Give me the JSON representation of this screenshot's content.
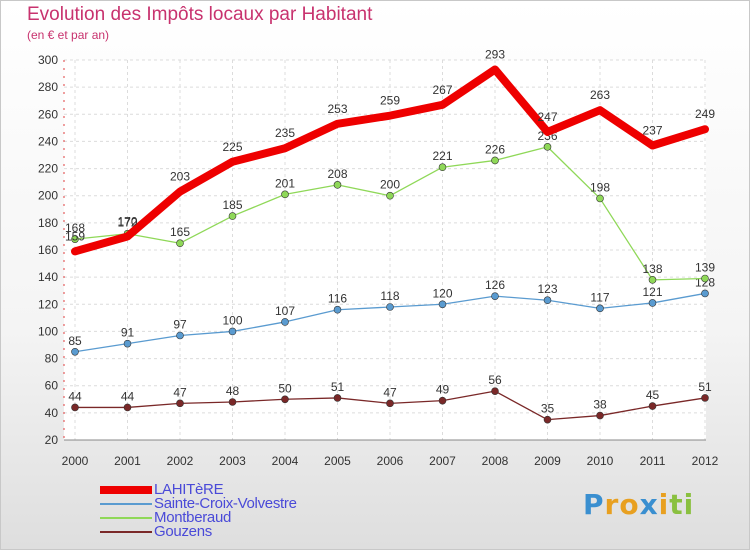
{
  "header": {
    "title": "Evolution des Impôts locaux par Habitant",
    "subtitle": "(en € et par an)"
  },
  "logo": {
    "letters": [
      "P",
      "r",
      "o",
      "x",
      "i",
      "t",
      "i"
    ],
    "colors": [
      "#3a8fd0",
      "#e8a020",
      "#e8a020",
      "#3a8fd0",
      "#e8a020",
      "#8ac040",
      "#8ac040"
    ]
  },
  "chart_data": {
    "type": "line",
    "title": "Evolution des Impôts locaux par Habitant",
    "subtitle": "(en € et par an)",
    "xlabel": "",
    "ylabel": "",
    "categories": [
      "2000",
      "2001",
      "2002",
      "2003",
      "2004",
      "2005",
      "2006",
      "2007",
      "2008",
      "2009",
      "2010",
      "2011",
      "2012"
    ],
    "ylim": [
      20,
      300
    ],
    "yticks": [
      20,
      40,
      60,
      80,
      100,
      120,
      140,
      160,
      180,
      200,
      220,
      240,
      260,
      280,
      300
    ],
    "grid": true,
    "legend_position": "bottom-left",
    "series": [
      {
        "name": "Gouzens",
        "color": "#7a2828",
        "values": [
          44,
          44,
          47,
          48,
          50,
          51,
          47,
          49,
          56,
          35,
          38,
          45,
          51
        ]
      },
      {
        "name": "Sainte-Croix-Volvestre",
        "color": "#5a9bd0",
        "values": [
          85,
          91,
          97,
          100,
          107,
          116,
          118,
          120,
          126,
          123,
          117,
          121,
          128
        ]
      },
      {
        "name": "Montberaud",
        "color": "#8fd858",
        "values": [
          168,
          172,
          165,
          185,
          201,
          208,
          200,
          221,
          226,
          236,
          198,
          138,
          139
        ]
      },
      {
        "name": "LAHITèRE",
        "color": "#ee0000",
        "values": [
          159,
          170,
          203,
          225,
          235,
          253,
          259,
          267,
          293,
          247,
          263,
          237,
          249
        ]
      }
    ],
    "legend_order": [
      "LAHITèRE",
      "Sainte-Croix-Volvestre",
      "Montberaud",
      "Gouzens"
    ]
  }
}
